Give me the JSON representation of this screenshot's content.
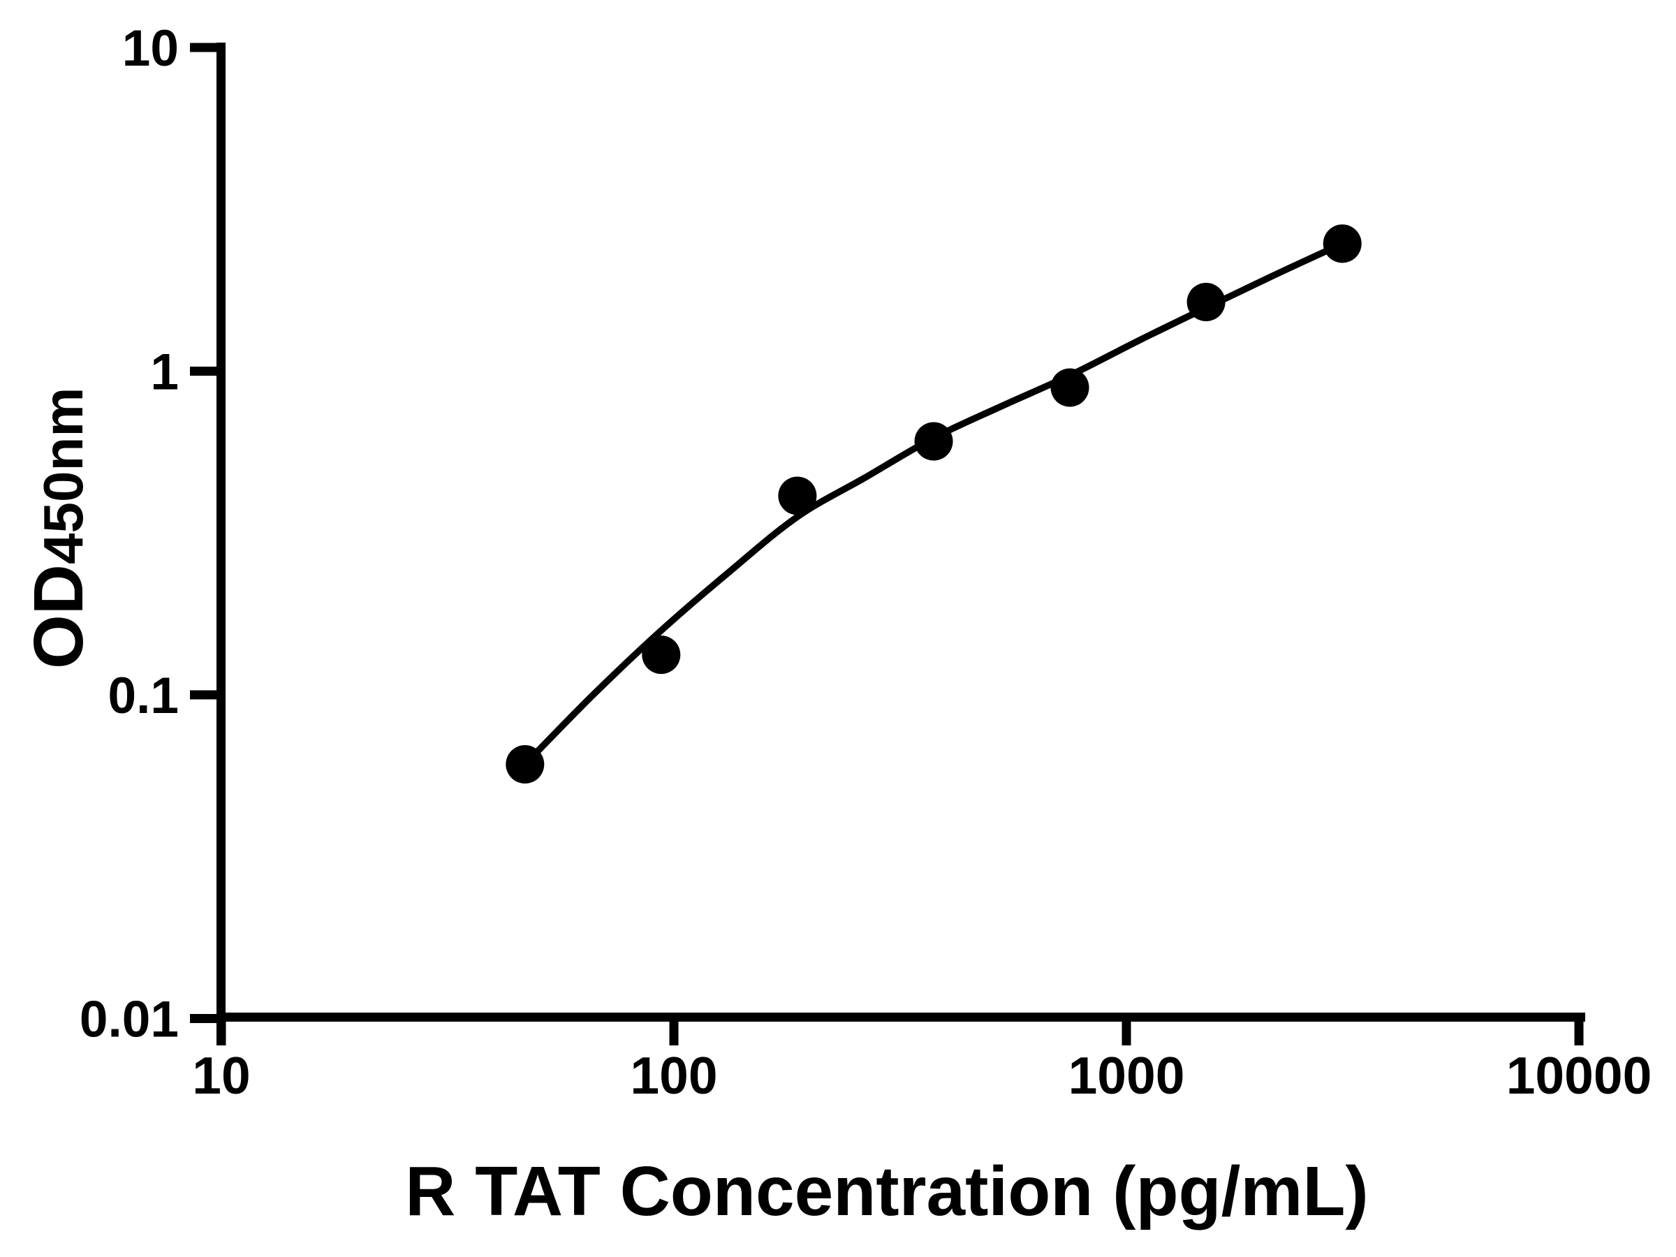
{
  "chart_data": {
    "type": "scatter",
    "title": "",
    "xlabel": "R TAT Concentration (pg/mL)",
    "ylabel": "OD",
    "ylabel_subscript": "450nm",
    "x_scale": "log",
    "y_scale": "log",
    "xlim": [
      10,
      10000
    ],
    "ylim": [
      0.01,
      10
    ],
    "x_ticks": [
      10,
      100,
      1000,
      10000
    ],
    "x_tick_labels": [
      "10",
      "100",
      "1000",
      "10000"
    ],
    "y_ticks": [
      10,
      1,
      0.1,
      0.01
    ],
    "y_tick_labels": [
      "10",
      "1",
      "0.1",
      "0.01"
    ],
    "grid": false,
    "legend": false,
    "marker": "circle",
    "marker_color": "#000000",
    "line_color": "#000000",
    "series": [
      {
        "name": "standard-curve-points",
        "points": [
          {
            "x": 46.88,
            "y": 0.061
          },
          {
            "x": 93.75,
            "y": 0.133
          },
          {
            "x": 187.5,
            "y": 0.412
          },
          {
            "x": 375,
            "y": 0.607
          },
          {
            "x": 750,
            "y": 0.89
          },
          {
            "x": 1500,
            "y": 1.635
          },
          {
            "x": 3000,
            "y": 2.477
          }
        ]
      }
    ],
    "fit_curve": [
      {
        "x": 46.88,
        "y": 0.061
      },
      {
        "x": 66.3,
        "y": 0.1
      },
      {
        "x": 93.75,
        "y": 0.158
      },
      {
        "x": 132.6,
        "y": 0.24
      },
      {
        "x": 187.5,
        "y": 0.355
      },
      {
        "x": 265.2,
        "y": 0.47
      },
      {
        "x": 375,
        "y": 0.622
      },
      {
        "x": 530.3,
        "y": 0.78
      },
      {
        "x": 750,
        "y": 0.97
      },
      {
        "x": 1060.7,
        "y": 1.24
      },
      {
        "x": 1500,
        "y": 1.57
      },
      {
        "x": 2121.3,
        "y": 1.98
      },
      {
        "x": 3000,
        "y": 2.477
      }
    ]
  },
  "styles": {
    "background": "#ffffff",
    "foreground": "#000000"
  }
}
